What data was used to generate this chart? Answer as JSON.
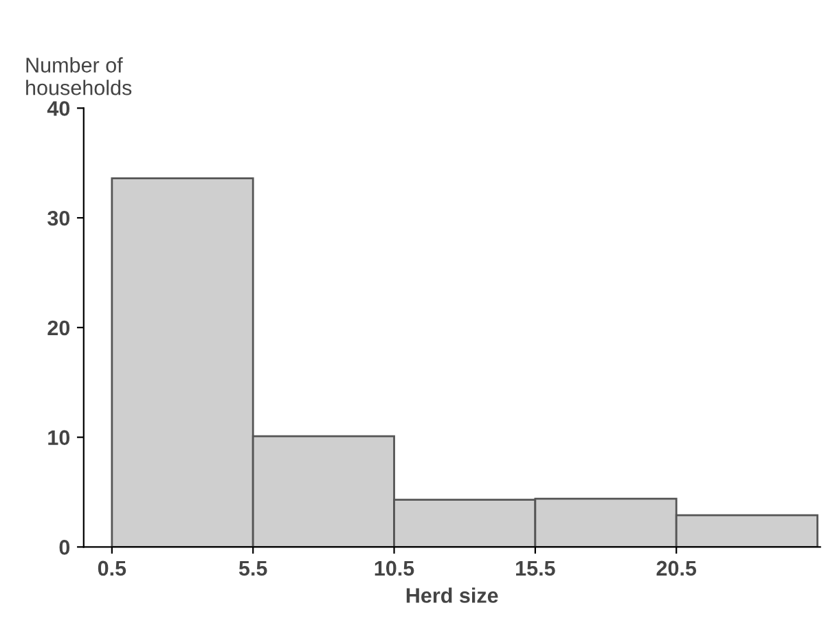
{
  "chart_data": {
    "type": "histogram",
    "xlabel": "Herd size",
    "ylabel": "Number of\nhouseholds",
    "bins": [
      0.5,
      5.5,
      10.5,
      15.5,
      20.5,
      25.5
    ],
    "values": [
      33.6,
      10.1,
      4.3,
      4.4,
      2.9
    ],
    "color": "#cfcfcf",
    "xlim": [
      -0.5,
      25.6
    ],
    "ylim": [
      0,
      40
    ],
    "xticks": [
      0.5,
      5.5,
      10.5,
      15.5,
      20.5
    ],
    "yticks": [
      0,
      10,
      20,
      30,
      40
    ],
    "grid": false
  }
}
